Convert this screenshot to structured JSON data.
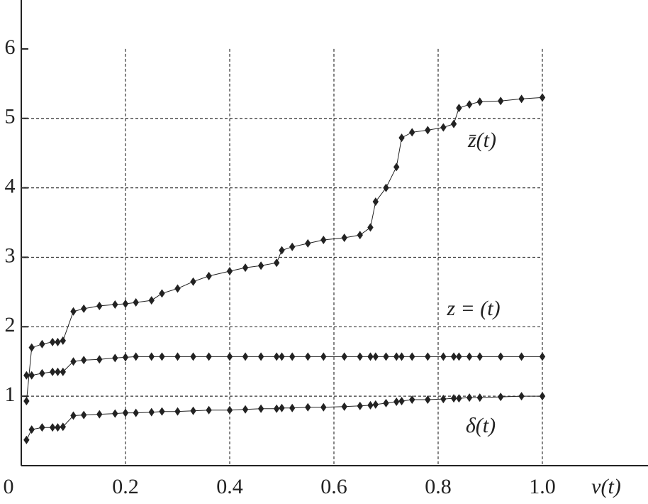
{
  "chart_data": {
    "type": "line",
    "x_label": "v(t)",
    "x": [
      0.01,
      0.02,
      0.04,
      0.06,
      0.07,
      0.08,
      0.1,
      0.12,
      0.15,
      0.18,
      0.2,
      0.22,
      0.25,
      0.27,
      0.3,
      0.33,
      0.36,
      0.4,
      0.43,
      0.46,
      0.49,
      0.5,
      0.52,
      0.55,
      0.58,
      0.62,
      0.65,
      0.67,
      0.68,
      0.7,
      0.72,
      0.73,
      0.75,
      0.78,
      0.81,
      0.83,
      0.84,
      0.86,
      0.88,
      0.92,
      0.96,
      1.0
    ],
    "series": [
      {
        "name": "z̄(t)",
        "color": "#222222",
        "values": [
          0.93,
          1.7,
          1.75,
          1.78,
          1.78,
          1.8,
          2.22,
          2.26,
          2.3,
          2.32,
          2.33,
          2.35,
          2.38,
          2.48,
          2.55,
          2.65,
          2.73,
          2.8,
          2.85,
          2.88,
          2.92,
          3.1,
          3.15,
          3.2,
          3.25,
          3.28,
          3.32,
          3.43,
          3.8,
          4.0,
          4.3,
          4.72,
          4.8,
          4.83,
          4.87,
          4.92,
          5.15,
          5.2,
          5.24,
          5.25,
          5.28,
          5.3
        ]
      },
      {
        "name": "z = (t)",
        "color": "#222222",
        "values": [
          1.3,
          1.3,
          1.33,
          1.35,
          1.35,
          1.35,
          1.5,
          1.52,
          1.53,
          1.55,
          1.56,
          1.57,
          1.57,
          1.57,
          1.57,
          1.57,
          1.57,
          1.57,
          1.57,
          1.57,
          1.57,
          1.57,
          1.57,
          1.57,
          1.57,
          1.57,
          1.57,
          1.57,
          1.57,
          1.57,
          1.57,
          1.57,
          1.57,
          1.57,
          1.57,
          1.57,
          1.57,
          1.57,
          1.57,
          1.57,
          1.57,
          1.57
        ]
      },
      {
        "name": "δ(t)",
        "color": "#222222",
        "values": [
          0.37,
          0.52,
          0.55,
          0.55,
          0.55,
          0.56,
          0.72,
          0.73,
          0.74,
          0.75,
          0.76,
          0.76,
          0.77,
          0.78,
          0.78,
          0.79,
          0.8,
          0.8,
          0.81,
          0.82,
          0.82,
          0.83,
          0.83,
          0.84,
          0.84,
          0.85,
          0.86,
          0.87,
          0.88,
          0.9,
          0.92,
          0.93,
          0.95,
          0.95,
          0.96,
          0.97,
          0.97,
          0.98,
          0.98,
          0.99,
          1.0,
          1.0
        ]
      }
    ],
    "xlim": [
      0,
      1.2
    ],
    "ylim": [
      0,
      6.7
    ],
    "xticks": [
      0,
      0.2,
      0.4,
      0.6,
      0.8,
      {
        "value": 1.0,
        "label": "1.0"
      }
    ],
    "yticks": [
      1,
      2,
      3,
      4,
      5,
      6
    ],
    "grid": true
  }
}
